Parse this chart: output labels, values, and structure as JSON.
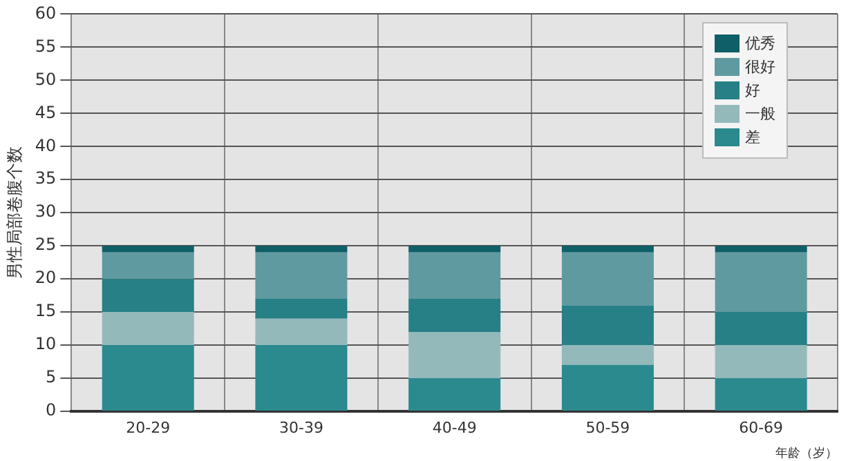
{
  "chart_data": {
    "type": "bar",
    "stacked": true,
    "xlabel": "年龄（岁）",
    "ylabel": "男性局部卷腹个数",
    "categories": [
      "20-29",
      "30-39",
      "40-49",
      "50-59",
      "60-69"
    ],
    "series": [
      {
        "name": "差",
        "color": "#2a8a8e",
        "values": [
          10,
          10,
          5,
          7,
          5
        ]
      },
      {
        "name": "一般",
        "color": "#93b9bb",
        "values": [
          5,
          4,
          7,
          3,
          5
        ]
      },
      {
        "name": "好",
        "color": "#268086",
        "values": [
          5,
          3,
          5,
          6,
          5
        ]
      },
      {
        "name": "很好",
        "color": "#5f9aa0",
        "values": [
          4,
          7,
          7,
          8,
          9
        ]
      },
      {
        "name": "优秀",
        "color": "#0e5f68",
        "values": [
          1,
          1,
          1,
          1,
          1
        ]
      }
    ],
    "ylim": [
      0,
      60
    ],
    "yticks": [
      0,
      5,
      10,
      15,
      20,
      25,
      30,
      35,
      40,
      45,
      50,
      55,
      60
    ],
    "grid": true,
    "legend": "top right"
  }
}
